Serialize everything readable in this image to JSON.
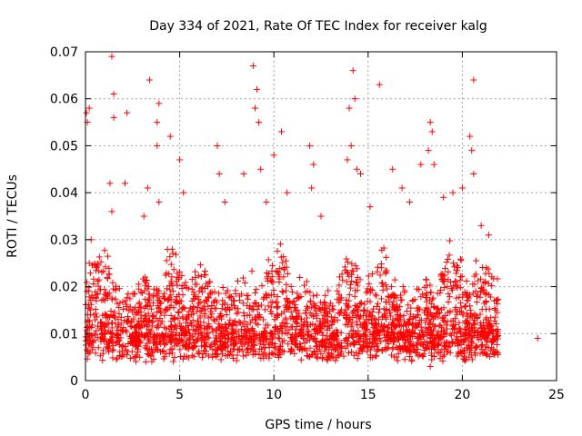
{
  "chart_data": {
    "type": "scatter",
    "title": "Day 334 of 2021, Rate Of TEC Index for receiver kalg",
    "xlabel": "GPS time / hours",
    "ylabel": "ROTI / TECUs",
    "xlim": [
      0,
      25
    ],
    "ylim": [
      0,
      0.07
    ],
    "xticks": [
      0,
      5,
      10,
      15,
      20,
      25
    ],
    "yticks": [
      0,
      0.01,
      0.02,
      0.03,
      0.04,
      0.05,
      0.06,
      0.07
    ],
    "grid": true,
    "marker": "plus",
    "color": "#ff0000",
    "series": [
      {
        "values": [
          [
            0.05,
            0.057
          ],
          [
            0.1,
            0.055
          ],
          [
            0.2,
            0.058
          ],
          [
            0.3,
            0.03
          ],
          [
            0.2,
            0.025
          ],
          [
            1.4,
            0.069
          ],
          [
            1.5,
            0.061
          ],
          [
            1.5,
            0.056
          ],
          [
            1.3,
            0.042
          ],
          [
            1.4,
            0.036
          ],
          [
            2.2,
            0.057
          ],
          [
            2.1,
            0.042
          ],
          [
            3.4,
            0.064
          ],
          [
            3.3,
            0.041
          ],
          [
            3.1,
            0.035
          ],
          [
            3.9,
            0.059
          ],
          [
            3.8,
            0.055
          ],
          [
            3.8,
            0.05
          ],
          [
            3.9,
            0.038
          ],
          [
            4.5,
            0.052
          ],
          [
            5.0,
            0.047
          ],
          [
            5.2,
            0.04
          ],
          [
            7.0,
            0.05
          ],
          [
            7.1,
            0.044
          ],
          [
            7.4,
            0.038
          ],
          [
            8.4,
            0.044
          ],
          [
            8.9,
            0.067
          ],
          [
            9.1,
            0.062
          ],
          [
            9.0,
            0.058
          ],
          [
            9.2,
            0.055
          ],
          [
            9.3,
            0.045
          ],
          [
            9.6,
            0.038
          ],
          [
            10.0,
            0.048
          ],
          [
            10.4,
            0.053
          ],
          [
            10.7,
            0.04
          ],
          [
            11.9,
            0.05
          ],
          [
            12.1,
            0.046
          ],
          [
            12.0,
            0.041
          ],
          [
            12.5,
            0.035
          ],
          [
            13.9,
            0.047
          ],
          [
            14.0,
            0.058
          ],
          [
            14.1,
            0.05
          ],
          [
            14.2,
            0.066
          ],
          [
            14.3,
            0.06
          ],
          [
            14.4,
            0.045
          ],
          [
            14.6,
            0.044
          ],
          [
            15.1,
            0.037
          ],
          [
            15.6,
            0.063
          ],
          [
            16.3,
            0.045
          ],
          [
            16.8,
            0.041
          ],
          [
            17.2,
            0.038
          ],
          [
            17.8,
            0.046
          ],
          [
            18.2,
            0.049
          ],
          [
            18.3,
            0.055
          ],
          [
            18.4,
            0.053
          ],
          [
            18.5,
            0.046
          ],
          [
            19.0,
            0.039
          ],
          [
            19.5,
            0.04
          ],
          [
            20.0,
            0.041
          ],
          [
            20.4,
            0.052
          ],
          [
            20.5,
            0.049
          ],
          [
            20.6,
            0.064
          ],
          [
            20.6,
            0.044
          ],
          [
            21.0,
            0.033
          ],
          [
            21.4,
            0.031
          ],
          [
            24.0,
            0.009
          ],
          [
            18.3,
            0.003
          ],
          [
            16.5,
            0.005
          ],
          [
            9.5,
            0.006
          ],
          [
            3.2,
            0.004
          ]
        ]
      }
    ],
    "dense_bands": [
      {
        "x_start": 0,
        "x_end": 21.9,
        "y_low": 0.003,
        "y_high": 0.029
      }
    ]
  }
}
